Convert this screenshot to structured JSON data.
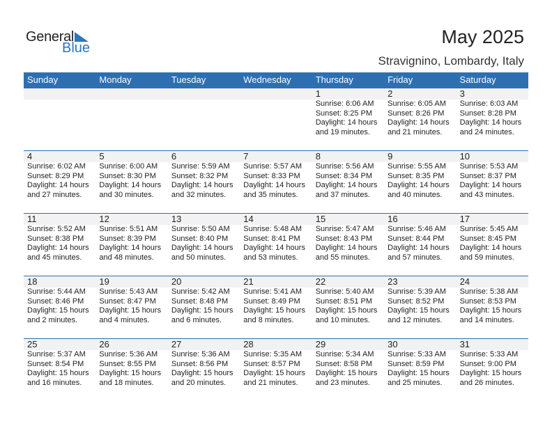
{
  "logo": {
    "general": "General",
    "blue": "Blue"
  },
  "title": "May 2025",
  "location": "Stravignino, Lombardy, Italy",
  "colors": {
    "header": "#2e6fb2",
    "date_strip": "#f2f2f2",
    "logo_blue": "#2e75c0"
  },
  "days": [
    "Sunday",
    "Monday",
    "Tuesday",
    "Wednesday",
    "Thursday",
    "Friday",
    "Saturday"
  ],
  "weeks": [
    [
      null,
      null,
      null,
      null,
      {
        "date": "1",
        "sunrise": "Sunrise: 6:06 AM",
        "sunset": "Sunset: 8:25 PM",
        "daylight1": "Daylight: 14 hours",
        "daylight2": "and 19 minutes."
      },
      {
        "date": "2",
        "sunrise": "Sunrise: 6:05 AM",
        "sunset": "Sunset: 8:26 PM",
        "daylight1": "Daylight: 14 hours",
        "daylight2": "and 21 minutes."
      },
      {
        "date": "3",
        "sunrise": "Sunrise: 6:03 AM",
        "sunset": "Sunset: 8:28 PM",
        "daylight1": "Daylight: 14 hours",
        "daylight2": "and 24 minutes."
      }
    ],
    [
      {
        "date": "4",
        "sunrise": "Sunrise: 6:02 AM",
        "sunset": "Sunset: 8:29 PM",
        "daylight1": "Daylight: 14 hours",
        "daylight2": "and 27 minutes."
      },
      {
        "date": "5",
        "sunrise": "Sunrise: 6:00 AM",
        "sunset": "Sunset: 8:30 PM",
        "daylight1": "Daylight: 14 hours",
        "daylight2": "and 30 minutes."
      },
      {
        "date": "6",
        "sunrise": "Sunrise: 5:59 AM",
        "sunset": "Sunset: 8:32 PM",
        "daylight1": "Daylight: 14 hours",
        "daylight2": "and 32 minutes."
      },
      {
        "date": "7",
        "sunrise": "Sunrise: 5:57 AM",
        "sunset": "Sunset: 8:33 PM",
        "daylight1": "Daylight: 14 hours",
        "daylight2": "and 35 minutes."
      },
      {
        "date": "8",
        "sunrise": "Sunrise: 5:56 AM",
        "sunset": "Sunset: 8:34 PM",
        "daylight1": "Daylight: 14 hours",
        "daylight2": "and 37 minutes."
      },
      {
        "date": "9",
        "sunrise": "Sunrise: 5:55 AM",
        "sunset": "Sunset: 8:35 PM",
        "daylight1": "Daylight: 14 hours",
        "daylight2": "and 40 minutes."
      },
      {
        "date": "10",
        "sunrise": "Sunrise: 5:53 AM",
        "sunset": "Sunset: 8:37 PM",
        "daylight1": "Daylight: 14 hours",
        "daylight2": "and 43 minutes."
      }
    ],
    [
      {
        "date": "11",
        "sunrise": "Sunrise: 5:52 AM",
        "sunset": "Sunset: 8:38 PM",
        "daylight1": "Daylight: 14 hours",
        "daylight2": "and 45 minutes."
      },
      {
        "date": "12",
        "sunrise": "Sunrise: 5:51 AM",
        "sunset": "Sunset: 8:39 PM",
        "daylight1": "Daylight: 14 hours",
        "daylight2": "and 48 minutes."
      },
      {
        "date": "13",
        "sunrise": "Sunrise: 5:50 AM",
        "sunset": "Sunset: 8:40 PM",
        "daylight1": "Daylight: 14 hours",
        "daylight2": "and 50 minutes."
      },
      {
        "date": "14",
        "sunrise": "Sunrise: 5:48 AM",
        "sunset": "Sunset: 8:41 PM",
        "daylight1": "Daylight: 14 hours",
        "daylight2": "and 53 minutes."
      },
      {
        "date": "15",
        "sunrise": "Sunrise: 5:47 AM",
        "sunset": "Sunset: 8:43 PM",
        "daylight1": "Daylight: 14 hours",
        "daylight2": "and 55 minutes."
      },
      {
        "date": "16",
        "sunrise": "Sunrise: 5:46 AM",
        "sunset": "Sunset: 8:44 PM",
        "daylight1": "Daylight: 14 hours",
        "daylight2": "and 57 minutes."
      },
      {
        "date": "17",
        "sunrise": "Sunrise: 5:45 AM",
        "sunset": "Sunset: 8:45 PM",
        "daylight1": "Daylight: 14 hours",
        "daylight2": "and 59 minutes."
      }
    ],
    [
      {
        "date": "18",
        "sunrise": "Sunrise: 5:44 AM",
        "sunset": "Sunset: 8:46 PM",
        "daylight1": "Daylight: 15 hours",
        "daylight2": "and 2 minutes."
      },
      {
        "date": "19",
        "sunrise": "Sunrise: 5:43 AM",
        "sunset": "Sunset: 8:47 PM",
        "daylight1": "Daylight: 15 hours",
        "daylight2": "and 4 minutes."
      },
      {
        "date": "20",
        "sunrise": "Sunrise: 5:42 AM",
        "sunset": "Sunset: 8:48 PM",
        "daylight1": "Daylight: 15 hours",
        "daylight2": "and 6 minutes."
      },
      {
        "date": "21",
        "sunrise": "Sunrise: 5:41 AM",
        "sunset": "Sunset: 8:49 PM",
        "daylight1": "Daylight: 15 hours",
        "daylight2": "and 8 minutes."
      },
      {
        "date": "22",
        "sunrise": "Sunrise: 5:40 AM",
        "sunset": "Sunset: 8:51 PM",
        "daylight1": "Daylight: 15 hours",
        "daylight2": "and 10 minutes."
      },
      {
        "date": "23",
        "sunrise": "Sunrise: 5:39 AM",
        "sunset": "Sunset: 8:52 PM",
        "daylight1": "Daylight: 15 hours",
        "daylight2": "and 12 minutes."
      },
      {
        "date": "24",
        "sunrise": "Sunrise: 5:38 AM",
        "sunset": "Sunset: 8:53 PM",
        "daylight1": "Daylight: 15 hours",
        "daylight2": "and 14 minutes."
      }
    ],
    [
      {
        "date": "25",
        "sunrise": "Sunrise: 5:37 AM",
        "sunset": "Sunset: 8:54 PM",
        "daylight1": "Daylight: 15 hours",
        "daylight2": "and 16 minutes."
      },
      {
        "date": "26",
        "sunrise": "Sunrise: 5:36 AM",
        "sunset": "Sunset: 8:55 PM",
        "daylight1": "Daylight: 15 hours",
        "daylight2": "and 18 minutes."
      },
      {
        "date": "27",
        "sunrise": "Sunrise: 5:36 AM",
        "sunset": "Sunset: 8:56 PM",
        "daylight1": "Daylight: 15 hours",
        "daylight2": "and 20 minutes."
      },
      {
        "date": "28",
        "sunrise": "Sunrise: 5:35 AM",
        "sunset": "Sunset: 8:57 PM",
        "daylight1": "Daylight: 15 hours",
        "daylight2": "and 21 minutes."
      },
      {
        "date": "29",
        "sunrise": "Sunrise: 5:34 AM",
        "sunset": "Sunset: 8:58 PM",
        "daylight1": "Daylight: 15 hours",
        "daylight2": "and 23 minutes."
      },
      {
        "date": "30",
        "sunrise": "Sunrise: 5:33 AM",
        "sunset": "Sunset: 8:59 PM",
        "daylight1": "Daylight: 15 hours",
        "daylight2": "and 25 minutes."
      },
      {
        "date": "31",
        "sunrise": "Sunrise: 5:33 AM",
        "sunset": "Sunset: 9:00 PM",
        "daylight1": "Daylight: 15 hours",
        "daylight2": "and 26 minutes."
      }
    ]
  ]
}
